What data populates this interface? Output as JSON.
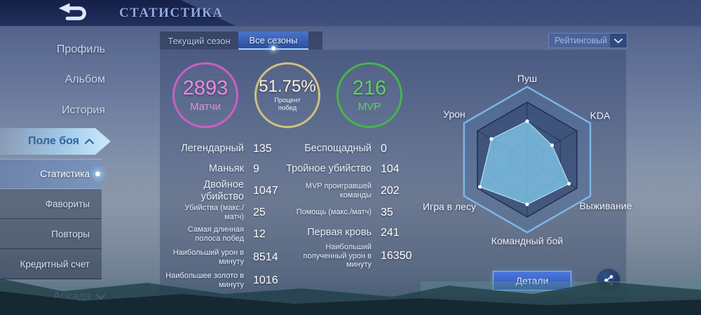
{
  "header": {
    "title": "СТАТИСТИКА"
  },
  "icons": {
    "back": "return-arrow",
    "share": "share-network",
    "dropdown": "chevron-down",
    "expanded": "chevron-up",
    "collapsed": "chevron-down"
  },
  "sidebar": {
    "items": [
      {
        "label": "Профиль"
      },
      {
        "label": "Альбом"
      },
      {
        "label": "История"
      },
      {
        "label": "Поле боя"
      },
      {
        "label": "Аркада"
      }
    ],
    "sub_items": [
      {
        "label": "Статистика",
        "active": true
      },
      {
        "label": "Фавориты"
      },
      {
        "label": "Повторы"
      },
      {
        "label": "Кредитный счет"
      }
    ]
  },
  "tabs": [
    {
      "label": "Текущий сезон",
      "active": false
    },
    {
      "label": "Все сезоны",
      "active": true
    }
  ],
  "filter": {
    "value": "Рейтинговый"
  },
  "circles": [
    {
      "value": "2893",
      "label": "Матчи",
      "color": "#cc5fc4"
    },
    {
      "value": "51.75%",
      "label": "Процент побед",
      "color": "#d0c17f"
    },
    {
      "value": "216",
      "label": "MVP",
      "color": "#46b44c"
    }
  ],
  "stats_left": [
    {
      "label": "Легендарный",
      "value": "135"
    },
    {
      "label": "Маньяк",
      "value": "9"
    },
    {
      "label": "Двойное убийство",
      "value": "1047"
    },
    {
      "label": "Убийства (макс./матч)",
      "value": "25"
    },
    {
      "label": "Самая длинная полоса побед",
      "value": "12"
    },
    {
      "label": "Наибольший урон в минуту",
      "value": "8514"
    },
    {
      "label": "Наибольшее золото в минуту",
      "value": "1016"
    }
  ],
  "stats_right": [
    {
      "label": "Беспощадный",
      "value": "0"
    },
    {
      "label": "Тройное убийство",
      "value": "104"
    },
    {
      "label": "MVP проигравшей команды",
      "value": "202"
    },
    {
      "label": "Помощь (макс./матч)",
      "value": "35"
    },
    {
      "label": "Первая кровь",
      "value": "241"
    },
    {
      "label": "Наибольший полученный урон в минуту",
      "value": "16350"
    }
  ],
  "chart_data": {
    "type": "radar",
    "categories": [
      "Пуш",
      "KDA",
      "Выживание",
      "Командный бой",
      "Игра в лесу",
      "Урон"
    ],
    "values": [
      0.67,
      0.5,
      0.84,
      0.78,
      0.95,
      0.72
    ],
    "scale": [
      0,
      1
    ],
    "rings": 3,
    "fill_color": "#7fc5e8",
    "outline_color": "#7db9e8",
    "legend_position": "none"
  },
  "actions": {
    "details_label": "Детали"
  }
}
